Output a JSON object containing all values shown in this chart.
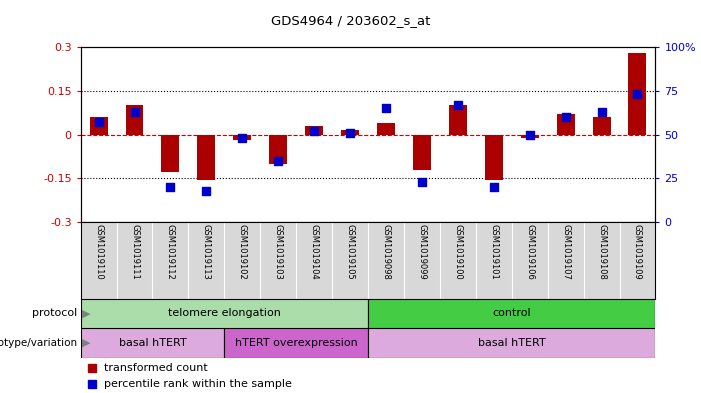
{
  "title": "GDS4964 / 203602_s_at",
  "samples": [
    "GSM1019110",
    "GSM1019111",
    "GSM1019112",
    "GSM1019113",
    "GSM1019102",
    "GSM1019103",
    "GSM1019104",
    "GSM1019105",
    "GSM1019098",
    "GSM1019099",
    "GSM1019100",
    "GSM1019101",
    "GSM1019106",
    "GSM1019107",
    "GSM1019108",
    "GSM1019109"
  ],
  "transformed_count": [
    0.06,
    0.1,
    -0.13,
    -0.155,
    -0.02,
    -0.1,
    0.03,
    0.015,
    0.04,
    -0.12,
    0.1,
    -0.155,
    -0.01,
    0.07,
    0.06,
    0.28
  ],
  "percentile_rank": [
    57,
    63,
    20,
    18,
    48,
    35,
    52,
    51,
    65,
    23,
    67,
    20,
    50,
    60,
    63,
    73
  ],
  "protocol_groups": [
    {
      "label": "telomere elongation",
      "start": 0,
      "end": 8,
      "color": "#aaddaa"
    },
    {
      "label": "control",
      "start": 8,
      "end": 16,
      "color": "#44cc44"
    }
  ],
  "genotype_groups": [
    {
      "label": "basal hTERT",
      "start": 0,
      "end": 4,
      "color": "#ddaadd"
    },
    {
      "label": "hTERT overexpression",
      "start": 4,
      "end": 8,
      "color": "#cc66cc"
    },
    {
      "label": "basal hTERT",
      "start": 8,
      "end": 16,
      "color": "#ddaadd"
    }
  ],
  "ylim": [
    -0.3,
    0.3
  ],
  "yticks_left": [
    -0.3,
    -0.15,
    0.0,
    0.15,
    0.3
  ],
  "ytick_labels_left": [
    "-0.3",
    "-0.15",
    "0",
    "0.15",
    "0.3"
  ],
  "yticks_right": [
    0,
    25,
    50,
    75,
    100
  ],
  "bar_color": "#AA0000",
  "dot_color": "#0000CC",
  "hline_color": "#CC0000",
  "bg_color": "#D8D8D8",
  "legend_red": "transformed count",
  "legend_blue": "percentile rank within the sample"
}
